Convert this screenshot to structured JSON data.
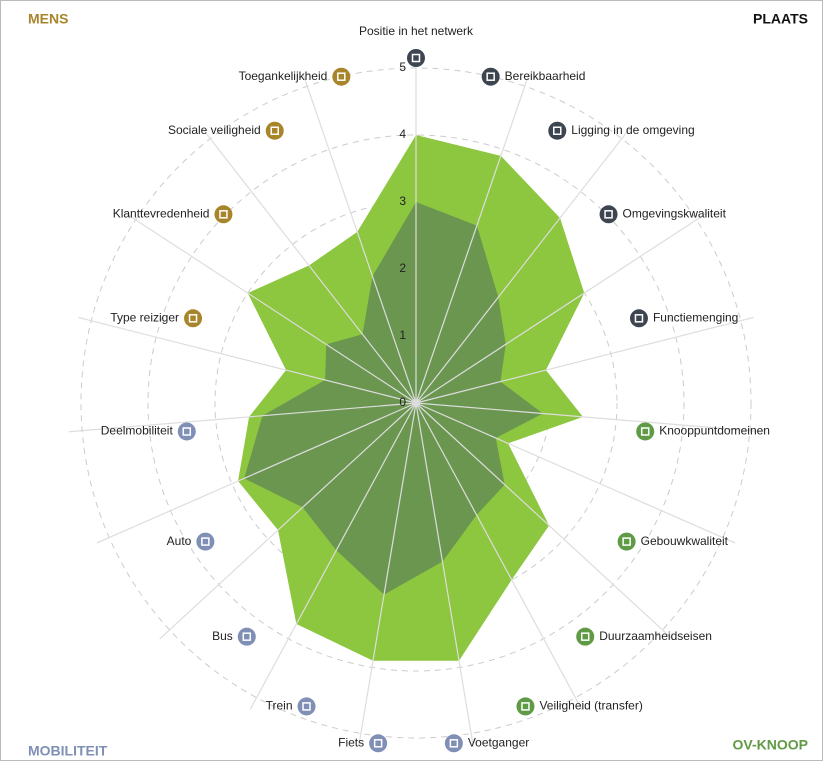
{
  "chart_data": {
    "type": "radar",
    "categories": [
      "Positie in het netwerk",
      "Bereikbaarheid",
      "Ligging in de omgeving",
      "Omgevingskwaliteit",
      "Functiemenging",
      "Knooppuntdomeinen",
      "Gebouwkwaliteit",
      "Duurzaamheidseisen",
      "Veiligheid (transfer)",
      "Voetganger",
      "Fiets",
      "Trein",
      "Bus",
      "Auto",
      "Deelmobiliteit",
      "Type reiziger",
      "Klanttevredenheid",
      "Sociale veiligheid",
      "Toegankelijkheid"
    ],
    "category_colors": [
      "#3d4650",
      "#3d4650",
      "#3d4650",
      "#3d4650",
      "#3d4650",
      "#5f9a45",
      "#5f9a45",
      "#5f9a45",
      "#5f9a45",
      "#7f8fb5",
      "#7f8fb5",
      "#7f8fb5",
      "#7f8fb5",
      "#7f8fb5",
      "#7f8fb5",
      "#a8852a",
      "#a8852a",
      "#a8852a",
      "#a8852a"
    ],
    "series": [
      {
        "color": "#8dc63f",
        "values": [
          4,
          3.9,
          3.5,
          3,
          2,
          2.5,
          1.5,
          2.7,
          3,
          3.9,
          3.9,
          3.75,
          2.8,
          2.9,
          2.5,
          2,
          3,
          2.6,
          2.7
        ]
      },
      {
        "color": "#6b9650",
        "values": [
          3,
          2.8,
          2,
          1.6,
          1.3,
          1.9,
          1.3,
          1.8,
          1.9,
          2.4,
          2.9,
          2.5,
          2.3,
          2.8,
          2.3,
          1.4,
          1.6,
          1.3,
          2
        ]
      }
    ],
    "rlim": [
      0,
      5
    ],
    "rticks": [
      0,
      1,
      2,
      3,
      4,
      5
    ],
    "corners": [
      {
        "label": "MENS",
        "color": "#a8852a",
        "position": "top-left"
      },
      {
        "label": "PLAATS",
        "color": "#111111",
        "position": "top-right"
      },
      {
        "label": "MOBILITEIT",
        "color": "#7f8fb5",
        "position": "bottom-left"
      },
      {
        "label": "OV-KNOOP",
        "color": "#5f9a45",
        "position": "bottom-right"
      }
    ]
  }
}
